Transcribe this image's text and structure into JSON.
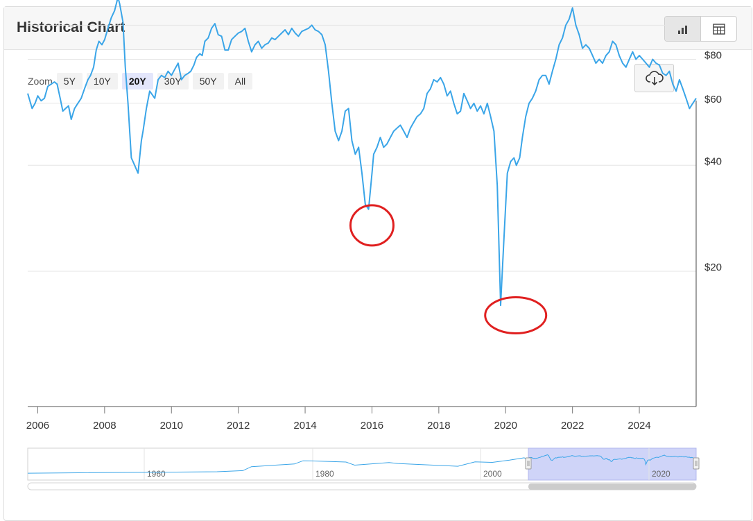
{
  "header": {
    "title": "Historical Chart"
  },
  "view_toggle": {
    "chart_icon": "bar-chart-icon",
    "table_icon": "table-icon"
  },
  "zoom": {
    "label": "Zoom",
    "options": [
      "5Y",
      "10Y",
      "20Y",
      "30Y",
      "50Y",
      "All"
    ],
    "selected": "20Y"
  },
  "download": {
    "icon": "cloud-download-icon"
  },
  "colors": {
    "line": "#3aa5e8",
    "navigator_mask": "#c7ccf7",
    "annotation": "#e02020"
  },
  "chart_data": {
    "type": "line",
    "title": "",
    "xlabel": "",
    "ylabel": "",
    "xlim": [
      2005.7,
      2025.7
    ],
    "y_axis_side": "right",
    "y_ticks": [
      {
        "value": 20,
        "label": "$20"
      },
      {
        "value": 40,
        "label": "$40"
      },
      {
        "value": 60,
        "label": "$60"
      },
      {
        "value": 80,
        "label": "$80"
      }
    ],
    "y_gridlines": [
      20,
      40,
      60,
      80,
      100
    ],
    "x_ticks": [
      "2006",
      "2008",
      "2010",
      "2012",
      "2014",
      "2016",
      "2018",
      "2020",
      "2022",
      "2024"
    ],
    "annotations": [
      {
        "type": "circle",
        "x": 2016.0,
        "y": 27
      },
      {
        "type": "circle",
        "x": 2020.3,
        "y": 15
      }
    ],
    "series": [
      {
        "x": [
          2005.7,
          2005.83,
          2005.92,
          2006.0,
          2006.1,
          2006.2,
          2006.3,
          2006.4,
          2006.5,
          2006.58,
          2006.67,
          2006.75,
          2006.83,
          2006.92,
          2007.0,
          2007.1,
          2007.2,
          2007.3,
          2007.4,
          2007.5,
          2007.58,
          2007.67,
          2007.75,
          2007.83,
          2007.92,
          2008.0,
          2008.1,
          2008.2,
          2008.3,
          2008.4,
          2008.45,
          2008.55,
          2008.62,
          2008.7,
          2008.8,
          2008.9,
          2009.0,
          2009.1,
          2009.15,
          2009.25,
          2009.35,
          2009.5,
          2009.6,
          2009.7,
          2009.8,
          2009.9,
          2010.0,
          2010.1,
          2010.2,
          2010.3,
          2010.4,
          2010.5,
          2010.58,
          2010.67,
          2010.75,
          2010.85,
          2010.92,
          2011.0,
          2011.1,
          2011.2,
          2011.3,
          2011.4,
          2011.5,
          2011.6,
          2011.7,
          2011.8,
          2011.9,
          2012.0,
          2012.1,
          2012.2,
          2012.3,
          2012.4,
          2012.5,
          2012.6,
          2012.7,
          2012.8,
          2012.9,
          2013.0,
          2013.1,
          2013.2,
          2013.3,
          2013.4,
          2013.5,
          2013.6,
          2013.7,
          2013.8,
          2013.9,
          2014.0,
          2014.1,
          2014.2,
          2014.3,
          2014.4,
          2014.5,
          2014.6,
          2014.7,
          2014.8,
          2014.9,
          2015.0,
          2015.1,
          2015.2,
          2015.3,
          2015.4,
          2015.5,
          2015.6,
          2015.7,
          2015.8,
          2015.9,
          2016.0,
          2016.05,
          2016.15,
          2016.25,
          2016.35,
          2016.45,
          2016.55,
          2016.65,
          2016.75,
          2016.85,
          2016.95,
          2017.05,
          2017.15,
          2017.25,
          2017.35,
          2017.45,
          2017.55,
          2017.65,
          2017.75,
          2017.85,
          2017.95,
          2018.05,
          2018.15,
          2018.25,
          2018.35,
          2018.45,
          2018.55,
          2018.65,
          2018.75,
          2018.85,
          2018.95,
          2019.05,
          2019.15,
          2019.25,
          2019.35,
          2019.45,
          2019.55,
          2019.65,
          2019.75,
          2019.85,
          2019.95,
          2020.05,
          2020.15,
          2020.25,
          2020.32,
          2020.42,
          2020.5,
          2020.6,
          2020.7,
          2020.8,
          2020.9,
          2021.0,
          2021.1,
          2021.2,
          2021.3,
          2021.4,
          2021.5,
          2021.6,
          2021.7,
          2021.8,
          2021.9,
          2022.0,
          2022.1,
          2022.2,
          2022.3,
          2022.4,
          2022.5,
          2022.6,
          2022.7,
          2022.8,
          2022.9,
          2023.0,
          2023.1,
          2023.2,
          2023.3,
          2023.4,
          2023.5,
          2023.6,
          2023.7,
          2023.8,
          2023.9,
          2024.0,
          2024.1,
          2024.2,
          2024.3,
          2024.4,
          2024.5,
          2024.6,
          2024.7,
          2024.8,
          2024.9,
          2025.0,
          2025.1,
          2025.2,
          2025.3,
          2025.4,
          2025.5,
          2025.6,
          2025.7
        ],
        "y": [
          64,
          58,
          60,
          63,
          61,
          62,
          67,
          68,
          69,
          68,
          62,
          57,
          58,
          59,
          54,
          58,
          60,
          62,
          66,
          70,
          72,
          76,
          85,
          90,
          88,
          91,
          98,
          105,
          110,
          120,
          115,
          102,
          76,
          60,
          42,
          40,
          38,
          47,
          50,
          58,
          65,
          62,
          70,
          72,
          71,
          74,
          72,
          75,
          78,
          70,
          72,
          73,
          74,
          77,
          81,
          83,
          82,
          90,
          92,
          98,
          101,
          94,
          93,
          85,
          85,
          91,
          93,
          95,
          96,
          98,
          90,
          84,
          88,
          90,
          86,
          88,
          89,
          92,
          91,
          93,
          95,
          97,
          94,
          98,
          95,
          93,
          96,
          97,
          98,
          100,
          97,
          96,
          94,
          88,
          74,
          60,
          50,
          47,
          50,
          57,
          58,
          47,
          43,
          45,
          38,
          31,
          30,
          38,
          43,
          45,
          48,
          45,
          46,
          48,
          50,
          51,
          52,
          50,
          48,
          51,
          53,
          55,
          56,
          58,
          64,
          66,
          70,
          69,
          71,
          68,
          63,
          65,
          60,
          56,
          57,
          64,
          61,
          58,
          60,
          57,
          59,
          56,
          60,
          55,
          50,
          35,
          16,
          25,
          38,
          41,
          42,
          40,
          42,
          48,
          55,
          60,
          62,
          65,
          70,
          72,
          72,
          68,
          74,
          80,
          88,
          92,
          100,
          104,
          112,
          100,
          94,
          86,
          88,
          86,
          82,
          78,
          80,
          78,
          82,
          84,
          90,
          88,
          82,
          78,
          76,
          80,
          84,
          80,
          82,
          80,
          78,
          76,
          80,
          78,
          77,
          73,
          72,
          74,
          68,
          65,
          70,
          66,
          62,
          58,
          60,
          62
        ]
      }
    ],
    "navigator": {
      "x_ticks": [
        "1960",
        "1980",
        "2000",
        "2020"
      ],
      "selected_range": [
        2005.7,
        2025.7
      ]
    }
  }
}
